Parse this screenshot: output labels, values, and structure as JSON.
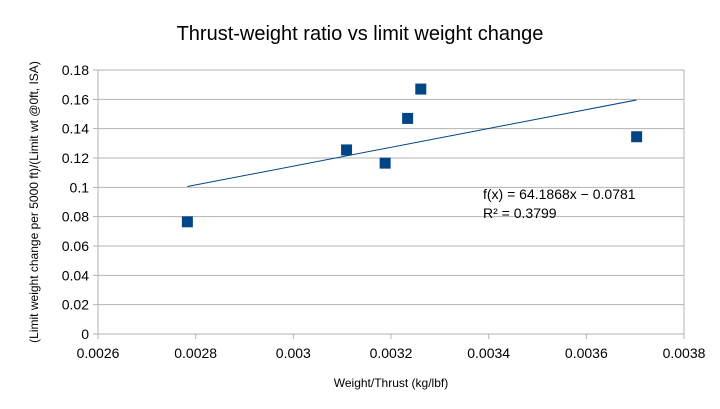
{
  "chart_data": {
    "type": "scatter",
    "title": "Thrust-weight ratio vs limit weight change",
    "xlabel": "Weight/Thrust (kg/lbf)",
    "ylabel": "(Limit weight change per 5000 ft)/(Limit wt @0ft, ISA)",
    "xlim": [
      0.0026,
      0.0038
    ],
    "ylim": [
      0,
      0.18
    ],
    "x_ticks": [
      "0.0026",
      "0.0028",
      "0.003",
      "0.0032",
      "0.0034",
      "0.0036",
      "0.0038"
    ],
    "y_ticks": [
      "0",
      "0.02",
      "0.04",
      "0.06",
      "0.08",
      "0.1",
      "0.12",
      "0.14",
      "0.16",
      "0.18"
    ],
    "grid": "horizontal",
    "legend": "none",
    "series": [
      {
        "marker": "square",
        "color": "#004586",
        "points": [
          {
            "x": 0.002783,
            "y": 0.0765
          },
          {
            "x": 0.003109,
            "y": 0.1255
          },
          {
            "x": 0.003188,
            "y": 0.1165
          },
          {
            "x": 0.003234,
            "y": 0.147
          },
          {
            "x": 0.003261,
            "y": 0.167
          },
          {
            "x": 0.003703,
            "y": 0.1345
          }
        ]
      }
    ],
    "trendline": {
      "type": "linear",
      "slope": 64.1868,
      "intercept": -0.0781,
      "x_range": [
        0.002783,
        0.003703
      ],
      "color": "#004586",
      "equation_label": "f(x) = 64.1868x − 0.0781",
      "r2_label": "R² = 0.3799"
    }
  }
}
